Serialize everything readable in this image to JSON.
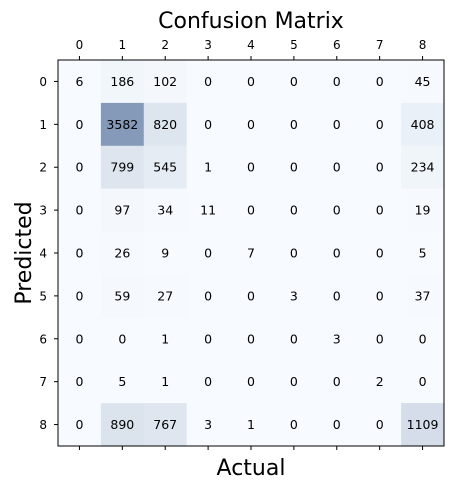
{
  "chart_data": {
    "type": "heatmap",
    "title": "Confusion Matrix",
    "xlabel": "Actual",
    "ylabel": "Predicted",
    "x_ticks": [
      "0",
      "1",
      "2",
      "3",
      "4",
      "5",
      "6",
      "7",
      "8"
    ],
    "y_ticks": [
      "0",
      "1",
      "2",
      "3",
      "4",
      "5",
      "6",
      "7",
      "8"
    ],
    "x_tick_position": "top",
    "colormap": "Blues",
    "matrix": [
      [
        6,
        186,
        102,
        0,
        0,
        0,
        0,
        0,
        45
      ],
      [
        0,
        3582,
        820,
        0,
        0,
        0,
        0,
        0,
        408
      ],
      [
        0,
        799,
        545,
        1,
        0,
        0,
        0,
        0,
        234
      ],
      [
        0,
        97,
        34,
        11,
        0,
        0,
        0,
        0,
        19
      ],
      [
        0,
        26,
        9,
        0,
        7,
        0,
        0,
        0,
        5
      ],
      [
        0,
        59,
        27,
        0,
        0,
        3,
        0,
        0,
        37
      ],
      [
        0,
        0,
        1,
        0,
        0,
        0,
        3,
        0,
        0
      ],
      [
        0,
        5,
        1,
        0,
        0,
        0,
        0,
        2,
        0
      ],
      [
        0,
        890,
        767,
        3,
        1,
        0,
        0,
        0,
        1109
      ]
    ],
    "color_scale_max": 7500,
    "colors": {
      "low": "#f7fbff",
      "high": "#08306b"
    }
  }
}
